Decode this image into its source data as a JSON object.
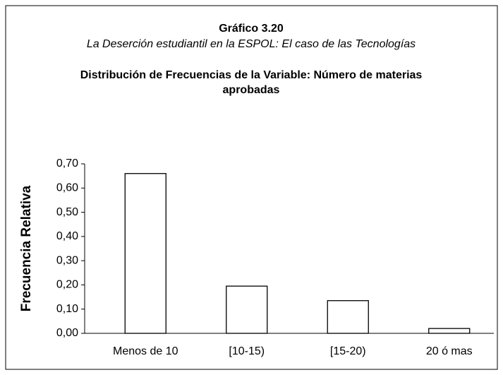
{
  "chart_data": {
    "type": "bar",
    "title": "Gráfico 3.20",
    "subtitle": "La Deserción estudiantil en la ESPOL: El caso de las Tecnologías",
    "subtitle_2": "Distribución de Frecuencias de la Variable: Número  de materias aprobadas",
    "y_label": "Frecuencia Relativa",
    "categories": [
      "Menos de 10",
      "[10-15)",
      "[15-20)",
      "20 ó mas"
    ],
    "values": [
      0.66,
      0.195,
      0.135,
      0.02
    ],
    "color": "#ffffff",
    "ylim": [
      0,
      0.7
    ],
    "yticks": [
      {
        "value": 0,
        "label": "0,00"
      },
      {
        "value": 0.1,
        "label": "0,10"
      },
      {
        "value": 0.2,
        "label": "0,20"
      },
      {
        "value": 0.3,
        "label": "0,30"
      },
      {
        "value": 0.4,
        "label": "0,40"
      },
      {
        "value": 0.5,
        "label": "0,50"
      },
      {
        "value": 0.6,
        "label": "0,60"
      },
      {
        "value": 0.7,
        "label": "0,70"
      }
    ],
    "grid": false
  }
}
